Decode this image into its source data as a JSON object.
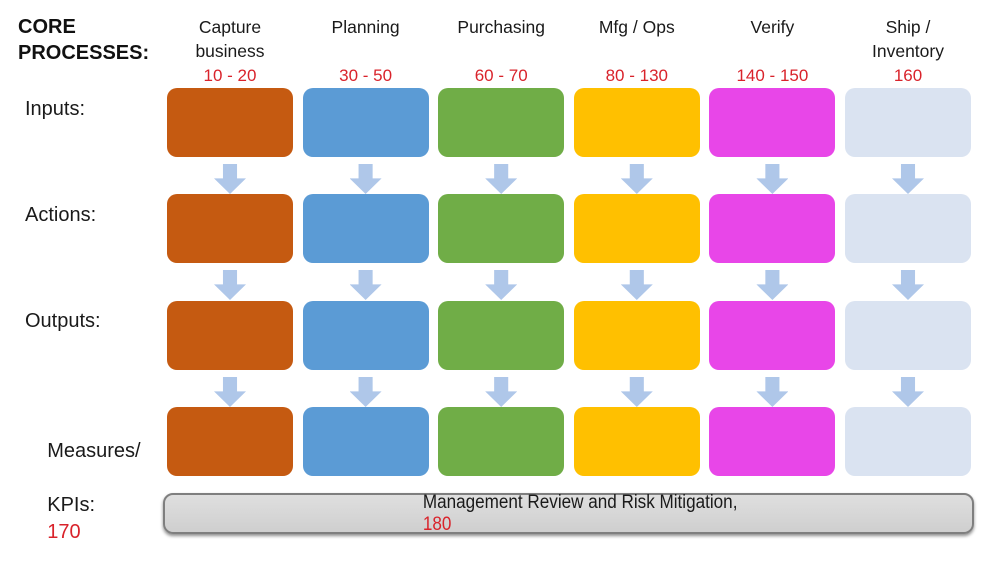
{
  "title": {
    "text": "CORE PROCESSES:"
  },
  "rows": [
    {
      "label": "Inputs:"
    },
    {
      "label": "Actions:"
    },
    {
      "label": "Outputs:"
    },
    {
      "label": "Measures/",
      "label2": "KPIs:",
      "value": "170"
    }
  ],
  "columns": [
    {
      "label": "Capture business",
      "lines": [
        "Capture",
        "business"
      ],
      "range": "10 - 20",
      "color": "#C55A11"
    },
    {
      "label": "Planning",
      "lines": [
        "Planning"
      ],
      "range": "30 - 50",
      "color": "#5B9BD5"
    },
    {
      "label": "Purchasing",
      "lines": [
        "Purchasing"
      ],
      "range": "60 - 70",
      "color": "#70AD47"
    },
    {
      "label": "Mfg / Ops",
      "lines": [
        "Mfg / Ops"
      ],
      "range": "80 - 130",
      "color": "#FFC000"
    },
    {
      "label": "Verify",
      "lines": [
        "Verify"
      ],
      "range": "140 - 150",
      "color": "#E846E8"
    },
    {
      "label": "Ship / Inventory",
      "lines": [
        "Ship /",
        "Inventory"
      ],
      "range": "160",
      "color": "#DAE3F1"
    }
  ],
  "footer": {
    "text": "Management Review and Risk Mitigation,",
    "value": "180"
  },
  "colors": {
    "range_red": "#D9232B",
    "arrow": "#AFC7E9",
    "bar_fill": "#D6D6D6",
    "bar_border": "#7F7F7F"
  }
}
